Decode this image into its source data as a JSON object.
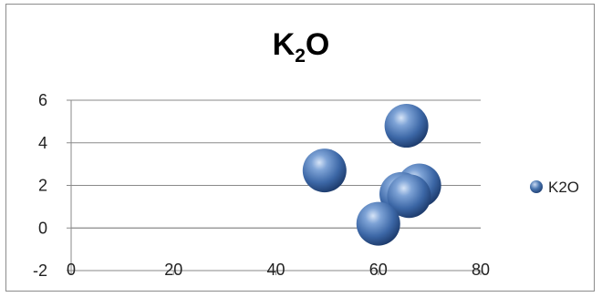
{
  "chart_data": {
    "type": "scatter",
    "title": {
      "base": "K",
      "subscript": "2",
      "suffix": "O"
    },
    "xlim": [
      0,
      80
    ],
    "ylim": [
      -2,
      6
    ],
    "x_ticks": [
      0,
      20,
      40,
      60,
      80
    ],
    "y_ticks": [
      -2,
      0,
      2,
      4,
      6
    ],
    "grid": "horizontal",
    "legend_position": "right",
    "series": [
      {
        "name": "K2O",
        "color": "#4a76b0",
        "marker": "sphere",
        "points": [
          {
            "x": 49.5,
            "y": 2.7
          },
          {
            "x": 65.5,
            "y": 4.8
          },
          {
            "x": 68,
            "y": 2.0
          },
          {
            "x": 64.5,
            "y": 1.6
          },
          {
            "x": 66,
            "y": 1.5
          },
          {
            "x": 60,
            "y": 0.2
          }
        ]
      }
    ]
  }
}
